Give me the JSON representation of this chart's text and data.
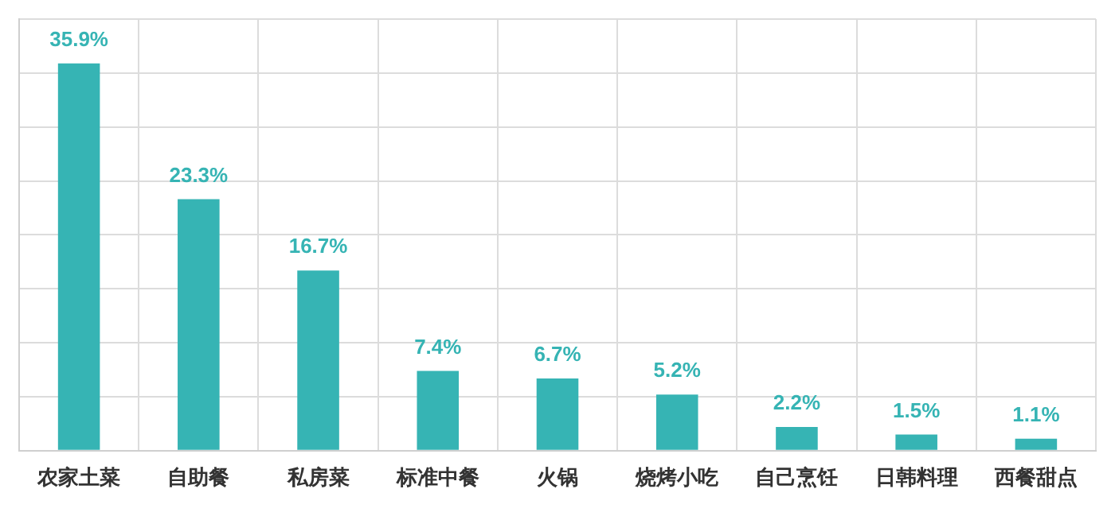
{
  "chart_data": {
    "type": "bar",
    "categories": [
      "农家土菜",
      "自助餐",
      "私房菜",
      "标准中餐",
      "火锅",
      "烧烤小吃",
      "自己烹饪",
      "日韩料理",
      "西餐甜点"
    ],
    "values": [
      35.9,
      23.3,
      16.7,
      7.4,
      6.7,
      5.2,
      2.2,
      1.5,
      1.1
    ],
    "value_labels": [
      "35.9%",
      "23.3%",
      "16.7%",
      "7.4%",
      "6.7%",
      "5.2%",
      "2.2%",
      "1.5%",
      "1.1%"
    ],
    "color": "#36b4b4",
    "ylim": [
      0,
      40
    ],
    "yticks": [
      {
        "value": 0,
        "label": null
      },
      {
        "value": 5,
        "label": null
      },
      {
        "value": 10,
        "label": null
      },
      {
        "value": 15,
        "label": null
      },
      {
        "value": 20,
        "label": null
      },
      {
        "value": 25,
        "label": null
      },
      {
        "value": 30,
        "label": null
      },
      {
        "value": 35,
        "label": null
      },
      {
        "value": 40,
        "label": null
      }
    ],
    "grid": true,
    "tick_labels": "x"
  }
}
